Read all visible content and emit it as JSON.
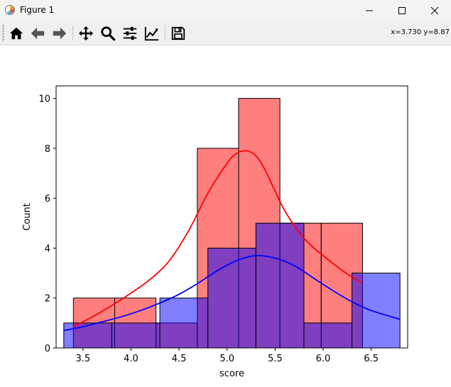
{
  "window": {
    "title": "Figure 1",
    "controls": [
      "minimize-icon",
      "maximize-icon",
      "close-icon"
    ]
  },
  "toolbar": {
    "buttons": [
      {
        "name": "home-button",
        "icon": "home-icon"
      },
      {
        "name": "back-button",
        "icon": "arrow-left-icon"
      },
      {
        "name": "forward-button",
        "icon": "arrow-right-icon"
      },
      {
        "name": "pan-button",
        "icon": "move-icon"
      },
      {
        "name": "zoom-button",
        "icon": "magnifier-icon"
      },
      {
        "name": "configure-subplots-button",
        "icon": "sliders-icon"
      },
      {
        "name": "edit-axis-button",
        "icon": "line-chart-icon"
      },
      {
        "name": "save-button",
        "icon": "floppy-disk-icon"
      }
    ],
    "coordinates": "x=3.730 y=8.87"
  },
  "chart_data": {
    "type": "bar",
    "xlabel": "score",
    "ylabel": "Count",
    "xlim": [
      3.22,
      6.88
    ],
    "ylim": [
      0,
      10.5
    ],
    "xticks": [
      3.5,
      4.0,
      4.5,
      5.0,
      5.5,
      6.0,
      6.5
    ],
    "xtick_labels": [
      "3.5",
      "4.0",
      "4.5",
      "5.0",
      "5.5",
      "6.0",
      "6.5"
    ],
    "yticks": [
      0,
      2,
      4,
      6,
      8,
      10
    ],
    "ytick_labels": [
      "0",
      "2",
      "4",
      "6",
      "8",
      "10"
    ],
    "grid": false,
    "series": [
      {
        "color": "#ff0000",
        "bars": [
          {
            "x0": 3.4,
            "x1": 3.83,
            "count": 2
          },
          {
            "x0": 3.83,
            "x1": 4.26,
            "count": 2
          },
          {
            "x0": 4.26,
            "x1": 4.69,
            "count": 1
          },
          {
            "x0": 4.69,
            "x1": 5.12,
            "count": 8
          },
          {
            "x0": 5.12,
            "x1": 5.55,
            "count": 10
          },
          {
            "x0": 5.55,
            "x1": 5.98,
            "count": 5
          },
          {
            "x0": 5.98,
            "x1": 6.41,
            "count": 5
          }
        ],
        "kde": {
          "x": [
            3.4,
            3.6,
            3.8,
            4.0,
            4.2,
            4.4,
            4.6,
            4.8,
            5.0,
            5.1,
            5.2,
            5.3,
            5.4,
            5.6,
            5.8,
            6.0,
            6.2,
            6.4
          ],
          "y": [
            0.85,
            1.25,
            1.7,
            2.2,
            2.75,
            3.5,
            4.7,
            6.2,
            7.4,
            7.8,
            7.9,
            7.7,
            7.1,
            5.5,
            4.4,
            3.7,
            3.1,
            2.6
          ]
        }
      },
      {
        "color": "#0000ff",
        "bars": [
          {
            "x0": 3.3,
            "x1": 3.8,
            "count": 1
          },
          {
            "x0": 3.8,
            "x1": 4.3,
            "count": 1
          },
          {
            "x0": 4.3,
            "x1": 4.8,
            "count": 2
          },
          {
            "x0": 4.8,
            "x1": 5.3,
            "count": 4
          },
          {
            "x0": 5.3,
            "x1": 5.8,
            "count": 5
          },
          {
            "x0": 5.8,
            "x1": 6.3,
            "count": 1
          },
          {
            "x0": 6.3,
            "x1": 6.8,
            "count": 3
          }
        ],
        "kde": {
          "x": [
            3.3,
            3.5,
            3.7,
            3.9,
            4.1,
            4.3,
            4.5,
            4.7,
            4.9,
            5.1,
            5.3,
            5.5,
            5.7,
            5.9,
            6.1,
            6.3,
            6.5,
            6.8
          ],
          "y": [
            0.7,
            0.85,
            1.05,
            1.25,
            1.5,
            1.8,
            2.15,
            2.6,
            3.1,
            3.5,
            3.7,
            3.6,
            3.3,
            2.8,
            2.3,
            1.85,
            1.5,
            1.15
          ]
        }
      }
    ]
  }
}
